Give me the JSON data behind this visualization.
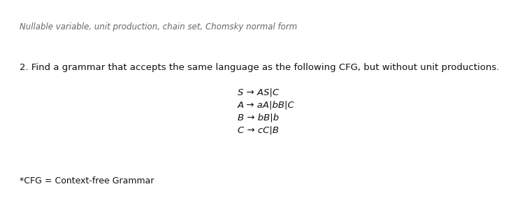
{
  "subtitle": "Nullable variable, unit production, chain set, Chomsky normal form",
  "question": "2. Find a grammar that accepts the same language as the following CFG, but without unit productions.",
  "grammar_lines": [
    "S → AS|C",
    "A → aA|bB|C",
    "B → bB|b",
    "C → cC|B"
  ],
  "footnote": "*CFG = Context-free Grammar",
  "bg_color": "#ffffff",
  "text_color": "#111111",
  "subtitle_color": "#666666",
  "subtitle_fontsize": 8.5,
  "question_fontsize": 9.5,
  "grammar_fontsize": 9.5,
  "footnote_fontsize": 9.0
}
